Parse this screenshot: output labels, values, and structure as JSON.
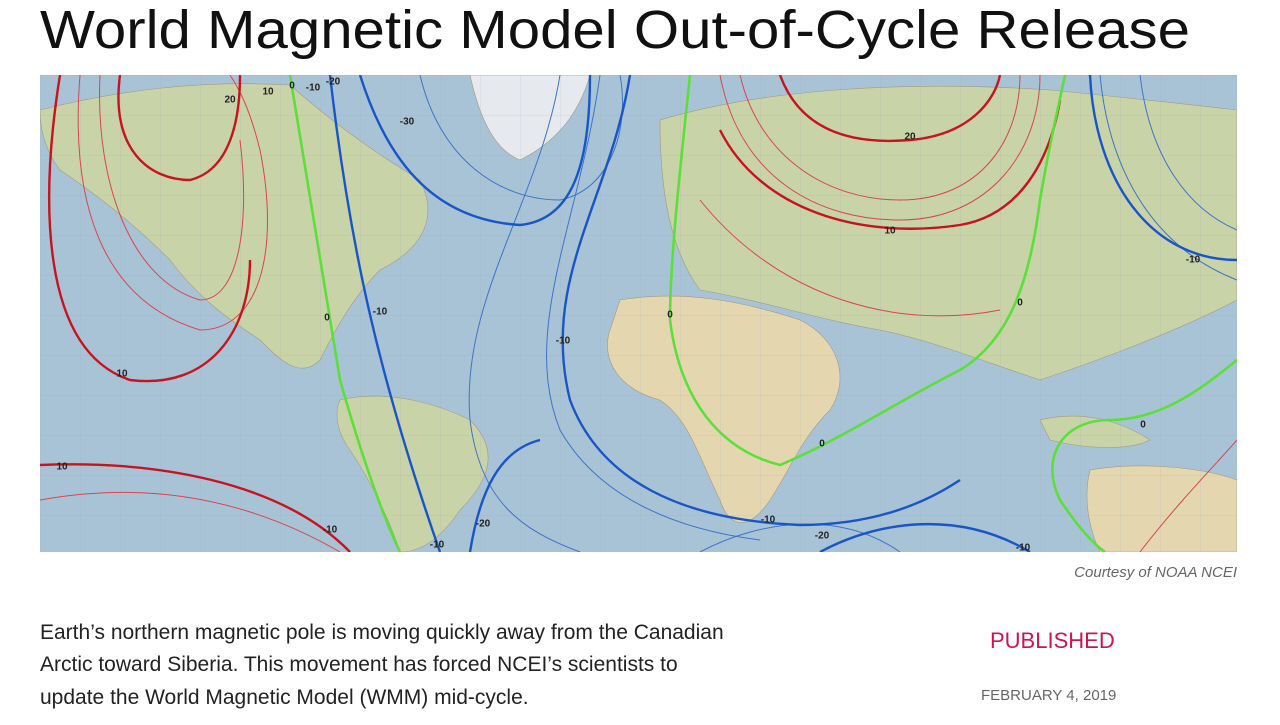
{
  "header": {
    "title": "World Magnetic Model Out-of-Cycle Release"
  },
  "map": {
    "credit": "Courtesy of NOAA NCEI",
    "contour_labels": [
      "20",
      "10",
      "0",
      "-10",
      "-20",
      "-30",
      "20",
      "10",
      "0",
      "-10",
      "0",
      "-10",
      "-10",
      "0",
      "10",
      "10",
      "-10",
      "-20",
      "-10",
      "-10",
      "-20",
      "0",
      "0",
      "-10"
    ]
  },
  "article": {
    "paragraph_lines": [
      "Earth’s northern magnetic pole is moving quickly away from the Canadian",
      "Arctic toward Siberia. This movement has forced NCEI’s scientists to",
      "update the World Magnetic Model (WMM) mid-cycle."
    ]
  },
  "sidebar": {
    "label": "PUBLISHED",
    "date": "FEBRUARY 4, 2019"
  }
}
